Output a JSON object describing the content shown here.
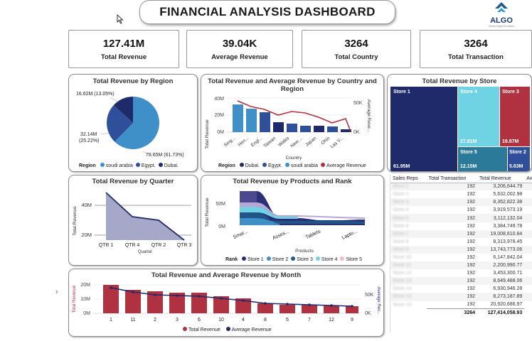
{
  "header": {
    "title": "FINANCIAL ANALYSIS DASHBOARD",
    "logo_text": "ALGO",
    "logo_sub": "Global Digital Solutions"
  },
  "kpis": [
    {
      "value": "127.41M",
      "label": "Total Revenue"
    },
    {
      "value": "39.04K",
      "label": "Average Revenue"
    },
    {
      "value": "3264",
      "label": "Total Country"
    },
    {
      "value": "3264",
      "label": "Total Transaction"
    }
  ],
  "colors": {
    "navy": "#1f2a6b",
    "steel": "#2f5fa5",
    "sky": "#3f8fc9",
    "crimson": "#b0313f",
    "teal": "#2c7a9a",
    "light": "#6fd3e3"
  },
  "region_chart": {
    "title": "Total Revenue by Region",
    "labels": [
      "16.62M (13.05%)",
      "32.14M",
      "(25.22%)",
      "78.65M (61.73%)"
    ],
    "legend_title": "Region",
    "legend": [
      "soudi arabia",
      "Egypt.",
      "Dubai."
    ]
  },
  "country_chart": {
    "title_line1": "Total Revenue and Average Revenue by Country and",
    "title_line2": "Region",
    "y_ticks": [
      "40M",
      "20M",
      "0M"
    ],
    "y2_ticks": [
      "50K",
      "0K"
    ],
    "ylabel": "Total Revenue",
    "y2label": "Average Reve...",
    "xlabel": "Country",
    "categories": [
      "Sing...",
      "Hon...",
      "Engl...",
      "Taiwan",
      "Wales",
      "New ...",
      "Japan",
      "Ohio",
      "Las V..."
    ],
    "legend_title": "Region",
    "legend": [
      "Dubai.",
      "Egypt.",
      "soudi arabia",
      "Average Revenue"
    ]
  },
  "store_chart": {
    "title": "Total Revenue by Store",
    "tiles": [
      {
        "name": "Store 1",
        "value": "61.95M"
      },
      {
        "name": "Store 4",
        "value": "27.81M"
      },
      {
        "name": "Store 3",
        "value": "19.87M"
      },
      {
        "name": "Store 5",
        "value": "12.15M"
      },
      {
        "name": "Store 2",
        "value": "5.63M"
      }
    ]
  },
  "quarter_chart": {
    "title": "Total Revenue by Quarter",
    "y_ticks": [
      "40M",
      "20M"
    ],
    "ylabel": "Total Revenue",
    "xlabel": "Quarter",
    "categories": [
      "QTR 1",
      "QTR 4",
      "QTR 2",
      "QTR 3"
    ]
  },
  "products_chart": {
    "title": "Total Revenue by Products and Rank",
    "y_ticks": [
      "50M",
      "0M"
    ],
    "ylabel": "Total Revenue",
    "xlabel": "Products",
    "categories": [
      "Smar...",
      "Asses...",
      "Tablets",
      "Lapto..."
    ],
    "legend_title": "Rank",
    "legend": [
      "Store 1",
      "Store 2",
      "Store 3",
      "Store 4",
      "Store 5"
    ]
  },
  "month_chart": {
    "title": "Total Revenue and Average Revenue by Month",
    "y_ticks": [
      "20M",
      "10M",
      "0M"
    ],
    "y2_ticks": [
      "50K",
      "0K"
    ],
    "ylabel": "Total Revenue",
    "y2label": "Average Rev...",
    "categories": [
      "1",
      "11",
      "2",
      "3",
      "6",
      "10",
      "4",
      "8",
      "5",
      "7",
      "12",
      "9"
    ],
    "legend": [
      "Total Revenue",
      "Average Revenue"
    ]
  },
  "sales_table": {
    "headers": [
      "Sales Reps",
      "Total Transaction",
      "Total Revenue",
      "Ave"
    ],
    "rows": [
      {
        "rep": "Store 1",
        "tx": "192",
        "rev": "3,206,644.79"
      },
      {
        "rep": "Store 2",
        "tx": "192",
        "rev": "5,632,002.98"
      },
      {
        "rep": "Store 3",
        "tx": "192",
        "rev": "8,352,822.38"
      },
      {
        "rep": "Store 4",
        "tx": "192",
        "rev": "3,919,573.19"
      },
      {
        "rep": "Store 5",
        "tx": "192",
        "rev": "3,112,132.04"
      },
      {
        "rep": "Store 6",
        "tx": "192",
        "rev": "3,384,749.78"
      },
      {
        "rep": "Store 7",
        "tx": "192",
        "rev": "19,008,610.84"
      },
      {
        "rep": "Store 8",
        "tx": "192",
        "rev": "8,313,978.45"
      },
      {
        "rep": "Store 9",
        "tx": "192",
        "rev": "13,743,773.06"
      },
      {
        "rep": "Store 10",
        "tx": "192",
        "rev": "6,147,842.04"
      },
      {
        "rep": "Store 11",
        "tx": "192",
        "rev": "2,200,990.77"
      },
      {
        "rep": "Store 12",
        "tx": "192",
        "rev": "3,453,300.71"
      },
      {
        "rep": "Store 13",
        "tx": "192",
        "rev": "8,649,488.06"
      },
      {
        "rep": "Store 14",
        "tx": "192",
        "rev": "6,930,946.28"
      },
      {
        "rep": "Store 15",
        "tx": "192",
        "rev": "8,273,187.89"
      },
      {
        "rep": "Store 16",
        "tx": "192",
        "rev": "20,920,686.97"
      }
    ],
    "total": {
      "tx": "3264",
      "rev": "127,414,058.93"
    }
  }
}
